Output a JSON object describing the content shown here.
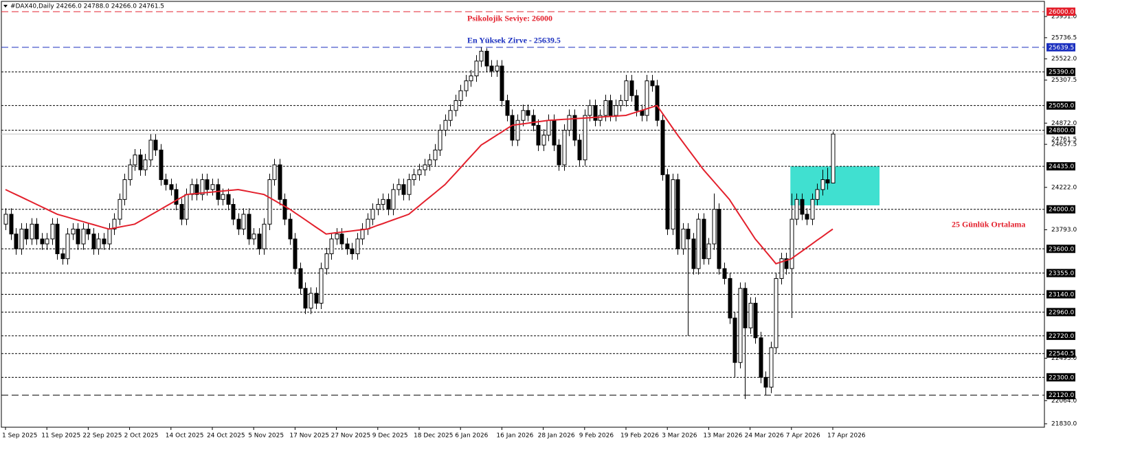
{
  "chart_data": {
    "type": "candlestick",
    "header": "#DAX40,Daily 24266.0 24788.0 24266.0 24761.5",
    "categories": [
      "1 Sep 2025",
      null,
      null,
      null,
      null,
      null,
      null,
      null,
      "11 Sep 2025",
      null,
      null,
      null,
      null,
      null,
      null,
      null,
      "22 Sep 2025",
      null,
      null,
      null,
      null,
      null,
      null,
      null,
      "2 Oct 2025",
      null,
      null,
      null,
      null,
      null,
      null,
      null,
      "14 Oct 2025",
      null,
      null,
      null,
      null,
      null,
      null,
      null,
      "24 Oct 2025",
      null,
      null,
      null,
      null,
      null,
      null,
      null,
      "5 Nov 2025",
      null,
      null,
      null,
      null,
      null,
      null,
      null,
      "17 Nov 2025",
      null,
      null,
      null,
      null,
      null,
      null,
      null,
      "27 Nov 2025",
      null,
      null,
      null,
      null,
      null,
      null,
      null,
      "9 Dec 2025",
      null,
      null,
      null,
      null,
      null,
      null,
      null,
      "18 Dec 2025",
      null,
      null,
      null,
      null,
      null,
      null,
      null,
      "6 Jan 2026",
      null,
      null,
      null,
      null,
      null,
      null,
      null,
      "16 Jan 2026",
      null,
      null,
      null,
      null,
      null,
      null,
      null,
      "28 Jan 2026",
      null,
      null,
      null,
      null,
      null,
      null,
      null,
      "9 Feb 2026",
      null,
      null,
      null,
      null,
      null,
      null,
      null,
      "19 Feb 2026",
      null,
      null,
      null,
      null,
      null,
      null,
      null,
      "3 Mar 2026",
      null,
      null,
      null,
      null,
      null,
      null,
      null,
      "13 Mar 2026",
      null,
      null,
      null,
      null,
      null,
      null,
      null,
      "24 Mar 2026",
      null,
      null,
      null,
      null,
      null,
      null,
      null,
      "7 Apr 2026",
      null,
      null,
      null,
      null,
      null,
      null,
      null,
      "17 Apr 2026"
    ],
    "open": [
      23850,
      23950,
      23750,
      23600,
      23800,
      23700,
      23850,
      23700,
      23650,
      23700,
      23850,
      23550,
      23500,
      23750,
      23800,
      23650,
      23800,
      23750,
      23600,
      23700,
      23650,
      23800,
      23900,
      24100,
      24300,
      24450,
      24550,
      24400,
      24500,
      24700,
      24600,
      24300,
      24250,
      24200,
      24050,
      23900,
      24150,
      24250,
      24150,
      24300,
      24200,
      24250,
      24100,
      24150,
      24050,
      23900,
      23800,
      23950,
      23700,
      23750,
      23600,
      23850,
      24300,
      24450,
      24100,
      23900,
      23700,
      23400,
      23200,
      23000,
      23150,
      23050,
      23400,
      23550,
      23700,
      23750,
      23650,
      23600,
      23550,
      23700,
      23800,
      23900,
      24000,
      24050,
      24100,
      24000,
      24200,
      24250,
      24150,
      24300,
      24350,
      24400,
      24450,
      24500,
      24600,
      24800,
      24900,
      25000,
      25100,
      25200,
      25300,
      25350,
      25500,
      25600,
      25450,
      25400,
      25450,
      25100,
      24950,
      24700,
      24900,
      25000,
      24950,
      24850,
      24650,
      24750,
      24900,
      24650,
      24450,
      24800,
      24950,
      24700,
      24500,
      24950,
      25050,
      24900,
      24950,
      25100,
      24950,
      25050,
      25100,
      25300,
      25150,
      25000,
      24950,
      25300,
      25250,
      24900,
      24350,
      23800,
      24300,
      23600,
      23800,
      23700,
      23400,
      23900,
      23500,
      23650,
      24000,
      23400,
      23300,
      22900,
      22450,
      23200,
      22800,
      23050,
      22700,
      22300,
      22200,
      22600,
      23300,
      23500,
      23400,
      23900,
      24100,
      23950,
      23900,
      24100,
      24200,
      24300,
      24266
    ],
    "high": [
      24010,
      24010,
      23810,
      23860,
      23860,
      23910,
      23910,
      23760,
      23760,
      23910,
      23910,
      23610,
      23810,
      23860,
      23860,
      23860,
      23860,
      23810,
      23760,
      23760,
      23860,
      23960,
      24160,
      24360,
      24510,
      24610,
      24610,
      24560,
      24760,
      24760,
      24660,
      24360,
      24310,
      24260,
      24110,
      24210,
      24310,
      24310,
      24360,
      24360,
      24310,
      24310,
      24210,
      24210,
      24110,
      23960,
      24010,
      24010,
      23810,
      23810,
      23910,
      24360,
      24510,
      24510,
      24160,
      23960,
      23760,
      23460,
      23260,
      23210,
      23210,
      23460,
      23610,
      23760,
      23810,
      23810,
      23710,
      23660,
      23760,
      23860,
      23960,
      24060,
      24110,
      24160,
      24160,
      24260,
      24310,
      24310,
      24360,
      24410,
      24460,
      24510,
      24560,
      24660,
      24860,
      24960,
      25060,
      25160,
      25260,
      25360,
      25410,
      25560,
      25639.5,
      25630,
      25510,
      25510,
      25510,
      25160,
      25010,
      24960,
      25060,
      25060,
      25010,
      24910,
      24810,
      24960,
      24960,
      24710,
      24860,
      25010,
      25010,
      24760,
      25010,
      25110,
      25110,
      25010,
      25160,
      25160,
      25110,
      25160,
      25360,
      25360,
      25210,
      25060,
      25360,
      25360,
      25310,
      24960,
      24410,
      24360,
      24360,
      23860,
      23860,
      23760,
      23960,
      23960,
      23710,
      24160,
      24060,
      23460,
      23360,
      22960,
      23260,
      23260,
      23110,
      23110,
      22760,
      22360,
      22660,
      23360,
      23560,
      23560,
      24160,
      24160,
      24160,
      24010,
      24160,
      24260,
      24400,
      24420,
      24788
    ],
    "low": [
      23790,
      23690,
      23540,
      23540,
      23640,
      23640,
      23640,
      23590,
      23590,
      23640,
      23490,
      23440,
      23440,
      23690,
      23590,
      23590,
      23690,
      23540,
      23540,
      23590,
      23590,
      23740,
      23840,
      24040,
      24240,
      24390,
      24340,
      24340,
      24440,
      24540,
      24240,
      24190,
      24140,
      23990,
      23840,
      23840,
      24090,
      24090,
      24090,
      24140,
      24140,
      24040,
      24040,
      23990,
      23840,
      23740,
      23740,
      23640,
      23640,
      23540,
      23540,
      23790,
      24240,
      24040,
      23840,
      23640,
      23340,
      23140,
      22940,
      22940,
      22990,
      22990,
      23340,
      23490,
      23640,
      23590,
      23540,
      23490,
      23490,
      23640,
      23740,
      23840,
      23940,
      23990,
      23940,
      23940,
      24140,
      24090,
      24090,
      24240,
      24290,
      24340,
      24390,
      24440,
      24540,
      24740,
      24840,
      24940,
      25040,
      25140,
      25240,
      25290,
      25440,
      25390,
      25340,
      25340,
      25040,
      24890,
      24640,
      24640,
      24840,
      24890,
      24790,
      24590,
      24590,
      24690,
      24590,
      24390,
      24390,
      24740,
      24640,
      24440,
      24440,
      24890,
      24840,
      24840,
      24890,
      24890,
      24890,
      24990,
      25040,
      25090,
      24940,
      24890,
      24890,
      25190,
      24840,
      24290,
      23740,
      23740,
      23540,
      23540,
      22720,
      23340,
      23340,
      23440,
      23440,
      23590,
      23340,
      23240,
      22840,
      22300,
      22390,
      22080,
      22740,
      22640,
      22240,
      22120,
      22140,
      22540,
      23240,
      23340,
      22900,
      23840,
      23890,
      23840,
      23840,
      24040,
      24140,
      24200,
      24266
    ],
    "close": [
      23950,
      23750,
      23600,
      23800,
      23700,
      23850,
      23700,
      23650,
      23700,
      23850,
      23550,
      23500,
      23750,
      23800,
      23650,
      23800,
      23750,
      23600,
      23700,
      23650,
      23800,
      23900,
      24100,
      24300,
      24450,
      24550,
      24400,
      24500,
      24700,
      24600,
      24300,
      24250,
      24200,
      24050,
      23900,
      24150,
      24250,
      24150,
      24300,
      24200,
      24250,
      24100,
      24150,
      24050,
      23900,
      23800,
      23950,
      23700,
      23750,
      23600,
      23850,
      24300,
      24450,
      24100,
      23900,
      23700,
      23400,
      23200,
      23000,
      23150,
      23050,
      23400,
      23550,
      23700,
      23750,
      23650,
      23600,
      23550,
      23700,
      23800,
      23900,
      24000,
      24050,
      24100,
      24000,
      24200,
      24250,
      24150,
      24300,
      24350,
      24400,
      24450,
      24500,
      24600,
      24800,
      24900,
      25000,
      25100,
      25200,
      25300,
      25350,
      25500,
      25600,
      25450,
      25400,
      25450,
      25100,
      24950,
      24700,
      24900,
      25000,
      24950,
      24850,
      24650,
      24750,
      24900,
      24650,
      24450,
      24800,
      24950,
      24700,
      24500,
      24950,
      25050,
      24900,
      24950,
      25100,
      24950,
      25050,
      25100,
      25300,
      25150,
      25000,
      24950,
      25300,
      25250,
      24900,
      24350,
      23800,
      24300,
      23600,
      23800,
      23700,
      23400,
      23900,
      23500,
      23650,
      24000,
      23400,
      23300,
      22900,
      22450,
      23200,
      22800,
      23050,
      22700,
      22300,
      22200,
      22600,
      23300,
      23500,
      23400,
      23900,
      24100,
      23950,
      23900,
      24100,
      24200,
      24300,
      24266,
      24761.5
    ],
    "up_color": "#ffffff",
    "down_color": "#000000",
    "ma": {
      "name": "25 Günlük Ortalama",
      "color": "#e3202c",
      "values": [
        24200,
        24175,
        24150,
        24125,
        24100,
        24075,
        24050,
        24025,
        24000,
        23975,
        23950,
        23935,
        23920,
        23905,
        23890,
        23875,
        23860,
        23845,
        23830,
        23815,
        23800,
        23810,
        23820,
        23830,
        23840,
        23850,
        23880,
        23910,
        23940,
        23970,
        24000,
        24030,
        24060,
        24090,
        24120,
        24150,
        24155,
        24160,
        24165,
        24170,
        24175,
        24180,
        24185,
        24190,
        24195,
        24200,
        24190,
        24180,
        24170,
        24160,
        24150,
        24120,
        24090,
        24060,
        24030,
        24000,
        23964,
        23929,
        23893,
        23857,
        23821,
        23786,
        23750,
        23756,
        23763,
        23769,
        23775,
        23781,
        23788,
        23794,
        23800,
        23819,
        23838,
        23856,
        23875,
        23894,
        23913,
        23931,
        23950,
        23993,
        24036,
        24079,
        24121,
        24164,
        24207,
        24250,
        24307,
        24364,
        24421,
        24479,
        24536,
        24593,
        24650,
        24683,
        24717,
        24750,
        24783,
        24817,
        24850,
        24857,
        24864,
        24871,
        24879,
        24886,
        24893,
        24900,
        24903,
        24907,
        24910,
        24913,
        24917,
        24920,
        24923,
        24927,
        24930,
        24933,
        24937,
        24940,
        24943,
        24947,
        24950,
        24967,
        24983,
        25000,
        25017,
        25033,
        25050,
        24975,
        24900,
        24825,
        24750,
        24680,
        24610,
        24540,
        24470,
        24400,
        24340,
        24280,
        24220,
        24160,
        24100,
        24020,
        23940,
        23860,
        23780,
        23700,
        23638,
        23575,
        23513,
        23450,
        23467,
        23483,
        23500,
        23538,
        23575,
        23613,
        23650,
        23688,
        23725,
        23763,
        23800
      ]
    },
    "levels": [
      {
        "value": 26000,
        "label": "26000.0",
        "color": "#e3202c"
      },
      {
        "value": 25639.5,
        "label": "25639.5",
        "color": "#1a2fbf"
      },
      {
        "value": 25390,
        "label": "25390.0",
        "color": "#000000"
      },
      {
        "value": 25050,
        "label": "25050.0",
        "color": "#000000"
      },
      {
        "value": 24800,
        "label": "24800.0",
        "color": "#000000"
      },
      {
        "value": 24435,
        "label": "24435.0",
        "color": "#000000"
      },
      {
        "value": 24000,
        "label": "24000.0",
        "color": "#000000"
      },
      {
        "value": 23600,
        "label": "23600.0",
        "color": "#000000"
      },
      {
        "value": 23355,
        "label": "23355.0",
        "color": "#000000"
      },
      {
        "value": 23140,
        "label": "23140.0",
        "color": "#000000"
      },
      {
        "value": 22960,
        "label": "22960.0",
        "color": "#000000"
      },
      {
        "value": 22720,
        "label": "22720.0",
        "color": "#000000"
      },
      {
        "value": 22540.5,
        "label": "22540.5",
        "color": "#000000"
      },
      {
        "value": 22300,
        "label": "22300.0",
        "color": "#000000"
      },
      {
        "value": 22120,
        "label": "22120.0",
        "color": "#000000"
      }
    ],
    "last_price": {
      "value": 24761.5,
      "label": "24761.5",
      "color": "#c0c0c0"
    },
    "zone": {
      "from": 24040,
      "to": 24435,
      "color": "#40e0d0"
    },
    "annotations": [
      {
        "text": "Psikolojik Seviye: 26000",
        "color": "#e3202c"
      },
      {
        "text": "En Yüksek Zirve - 25639.5",
        "color": "#1a2fbf"
      }
    ],
    "ylim": [
      21795,
      26104
    ],
    "yticks": [
      {
        "value": 25951,
        "label": "25951.0"
      },
      {
        "value": 25736.5,
        "label": "25736.5"
      },
      {
        "value": 25522,
        "label": "25522.0"
      },
      {
        "value": 25307.5,
        "label": "25307.5"
      },
      {
        "value": 24872,
        "label": "24872.0"
      },
      {
        "value": 24657.5,
        "label": "24657.5"
      },
      {
        "value": 24222,
        "label": "24222.0"
      },
      {
        "value": 23793,
        "label": "23793.0"
      },
      {
        "value": 22493,
        "label": "22493.0"
      },
      {
        "value": 22064,
        "label": "22064.0"
      },
      {
        "value": 21830,
        "label": "21830.0"
      }
    ]
  }
}
